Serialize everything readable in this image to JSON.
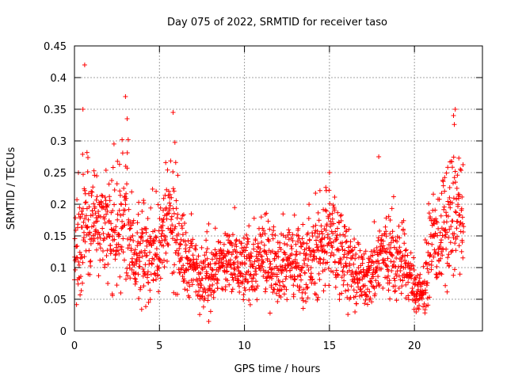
{
  "chart_data": {
    "type": "scatter",
    "title": "Day 075 of 2022, SRMTID for receiver taso",
    "xlabel": "GPS time / hours",
    "ylabel": "SRMTID / TECUs",
    "xlim": [
      0,
      24
    ],
    "ylim": [
      0,
      0.45
    ],
    "x_ticks": [
      0,
      5,
      10,
      15,
      20
    ],
    "x_tick_labels": [
      "0",
      "5",
      "10",
      "15",
      "20"
    ],
    "y_ticks": [
      0,
      0.05,
      0.1,
      0.15,
      0.2,
      0.25,
      0.3,
      0.35,
      0.4,
      0.45
    ],
    "y_tick_labels": [
      "0",
      "0.05",
      "0.1",
      "0.15",
      "0.2",
      "0.25",
      "0.3",
      "0.35",
      "0.4",
      "0.45"
    ],
    "grid": true,
    "marker": "+",
    "color": "#ff0000",
    "x_data_range": [
      0,
      22.9
    ],
    "trend_profile": [
      [
        0,
        0.12
      ],
      [
        0.5,
        0.17
      ],
      [
        1,
        0.19
      ],
      [
        1.5,
        0.16
      ],
      [
        2,
        0.15
      ],
      [
        2.5,
        0.16
      ],
      [
        3,
        0.18
      ],
      [
        3.5,
        0.12
      ],
      [
        4,
        0.11
      ],
      [
        5,
        0.13
      ],
      [
        5.5,
        0.17
      ],
      [
        6,
        0.16
      ],
      [
        6.5,
        0.11
      ],
      [
        7,
        0.1
      ],
      [
        7.5,
        0.09
      ],
      [
        8,
        0.09
      ],
      [
        8.5,
        0.1
      ],
      [
        9,
        0.11
      ],
      [
        10,
        0.1
      ],
      [
        11,
        0.11
      ],
      [
        12,
        0.11
      ],
      [
        13,
        0.11
      ],
      [
        14,
        0.11
      ],
      [
        14.8,
        0.15
      ],
      [
        15.5,
        0.13
      ],
      [
        16,
        0.12
      ],
      [
        16.5,
        0.08
      ],
      [
        17,
        0.08
      ],
      [
        17.5,
        0.09
      ],
      [
        18,
        0.12
      ],
      [
        18.5,
        0.12
      ],
      [
        19,
        0.11
      ],
      [
        19.5,
        0.1
      ],
      [
        20,
        0.07
      ],
      [
        20.5,
        0.06
      ],
      [
        21,
        0.13
      ],
      [
        21.5,
        0.15
      ],
      [
        22,
        0.17
      ],
      [
        22.5,
        0.19
      ],
      [
        22.9,
        0.14
      ]
    ],
    "notable_points": [
      {
        "x": 0.6,
        "y": 0.42
      },
      {
        "x": 3.0,
        "y": 0.37
      },
      {
        "x": 3.1,
        "y": 0.335
      },
      {
        "x": 5.8,
        "y": 0.345
      },
      {
        "x": 0.5,
        "y": 0.35
      },
      {
        "x": 22.4,
        "y": 0.35
      },
      {
        "x": 22.3,
        "y": 0.34
      },
      {
        "x": 7.9,
        "y": 0.015
      },
      {
        "x": 20.1,
        "y": 0.03
      },
      {
        "x": 16.5,
        "y": 0.03
      },
      {
        "x": 15.0,
        "y": 0.25
      },
      {
        "x": 17.9,
        "y": 0.275
      }
    ]
  }
}
